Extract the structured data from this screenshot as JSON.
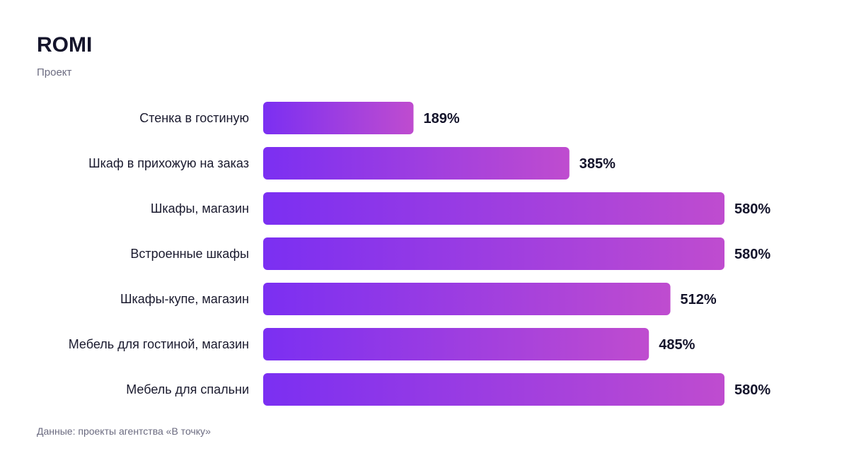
{
  "title": "ROMI",
  "subtitle": "Проект",
  "footnote": "Данные: проекты агентства «В точку»",
  "colors": {
    "bar_start": "#7b2ff2",
    "bar_end": "#bf4ccf",
    "label": "#1a1a2e",
    "value": "#14142b"
  },
  "chart_data": {
    "type": "bar",
    "orientation": "horizontal",
    "categories": [
      "Стенка в гостиную",
      "Шкаф в прихожую на заказ",
      "Шкафы, магазин",
      "Встроенные шкафы",
      "Шкафы-купе, магазин",
      "Мебель для гостиной, магазин",
      "Мебель для спальни"
    ],
    "values": [
      189,
      385,
      580,
      580,
      512,
      485,
      580
    ],
    "value_labels": [
      "189%",
      "385%",
      "580%",
      "580%",
      "512%",
      "485%",
      "580%"
    ],
    "unit": "%",
    "xlim": [
      0,
      580
    ],
    "grid": false,
    "legend": "none"
  }
}
